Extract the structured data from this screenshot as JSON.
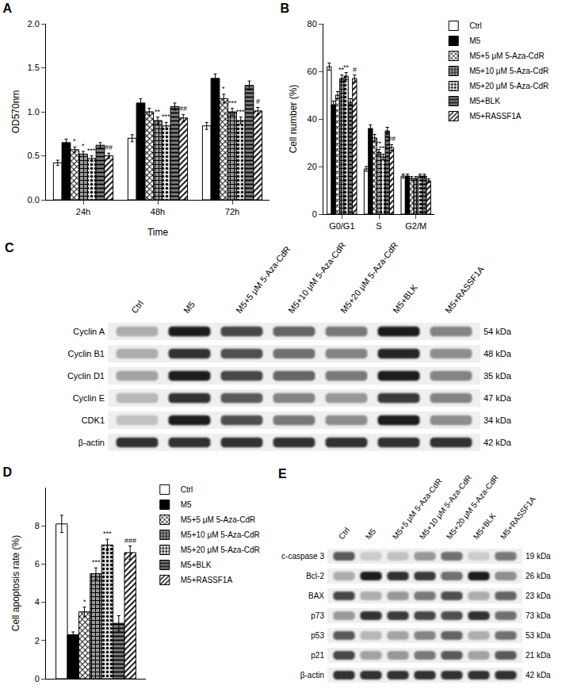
{
  "chart_data": [
    {
      "type": "bar",
      "title": "A",
      "x_label": "Time",
      "y_label": "OD570nm",
      "categories": [
        "24h",
        "48h",
        "72h"
      ],
      "ylim": [
        0,
        2
      ],
      "yticks": [
        {
          "value": 0,
          "label": "0.0"
        },
        0.5,
        {
          "value": 1,
          "label": "1.0"
        },
        1.5,
        {
          "value": 2,
          "label": "2.0"
        }
      ],
      "grid": false,
      "series": [
        {
          "name": "Ctrl",
          "color": "#ffffff",
          "values": [
            0.42,
            0.7,
            0.84
          ],
          "errors": [
            0.03,
            0.04,
            0.04
          ],
          "annotations": [
            null,
            null,
            null
          ]
        },
        {
          "name": "M5",
          "color": "#000000",
          "values": [
            0.65,
            1.1,
            1.38
          ],
          "errors": [
            0.04,
            0.05,
            0.05
          ],
          "annotations": [
            null,
            null,
            null
          ]
        },
        {
          "name": "M5+5 μM 5-Aza-CdR",
          "color": "#ffffff",
          "values": [
            0.57,
            1.0,
            1.15
          ],
          "errors": [
            0.03,
            0.04,
            0.05
          ],
          "annotations": [
            "*",
            null,
            "*"
          ]
        },
        {
          "name": "M5+10 μM 5-Aza-CdR",
          "color": "#9a9a9a",
          "values": [
            0.52,
            0.9,
            1.0
          ],
          "errors": [
            0.03,
            0.04,
            0.04
          ],
          "annotations": [
            "*",
            "**",
            "***"
          ]
        },
        {
          "name": "M5+20 μM 5-Aza-CdR",
          "color": "#e0e0e0",
          "values": [
            0.47,
            0.84,
            0.9
          ],
          "errors": [
            0.03,
            0.04,
            0.04
          ],
          "annotations": [
            "***",
            "***",
            "***"
          ]
        },
        {
          "name": "M5+BLK",
          "color": "#7a7a7a",
          "values": [
            0.62,
            1.06,
            1.3
          ],
          "errors": [
            0.03,
            0.04,
            0.05
          ],
          "annotations": [
            null,
            null,
            null
          ]
        },
        {
          "name": "M5+RASSF1A",
          "color": "#ffffff",
          "values": [
            0.5,
            0.93,
            1.01
          ],
          "errors": [
            0.03,
            0.04,
            0.04
          ],
          "annotations": [
            "##",
            "##",
            "#"
          ]
        }
      ]
    },
    {
      "type": "bar",
      "title": "B",
      "y_label": "Cell number (%)",
      "categories": [
        "G0/G1",
        "S",
        "G2/M"
      ],
      "ylim": [
        0,
        80
      ],
      "yticks": [
        0,
        20,
        40,
        60,
        80
      ],
      "grid": false,
      "legend": "upper right",
      "series": [
        {
          "name": "Ctrl",
          "color": "#ffffff",
          "values": [
            62,
            19,
            16
          ],
          "errors": [
            1.5,
            1,
            0.8
          ],
          "annotations": [
            null,
            null,
            null
          ]
        },
        {
          "name": "M5",
          "color": "#000000",
          "values": [
            46,
            36,
            16
          ],
          "errors": [
            1.5,
            1.5,
            0.8
          ],
          "annotations": [
            null,
            null,
            null
          ]
        },
        {
          "name": "M5+5 μM 5-Aza-CdR",
          "color": "#ffffff",
          "values": [
            50,
            32,
            15
          ],
          "errors": [
            1.5,
            1.5,
            0.8
          ],
          "annotations": [
            null,
            null,
            null
          ]
        },
        {
          "name": "M5+10 μM 5-Aza-CdR",
          "color": "#9a9a9a",
          "values": [
            57,
            26,
            15
          ],
          "errors": [
            1.5,
            1.2,
            0.8
          ],
          "annotations": [
            "**",
            "**",
            null
          ]
        },
        {
          "name": "M5+20 μM 5-Aza-CdR",
          "color": "#e0e0e0",
          "values": [
            58,
            24,
            16
          ],
          "errors": [
            1.5,
            1.2,
            0.8
          ],
          "annotations": [
            "**",
            "***",
            null
          ]
        },
        {
          "name": "M5+BLK",
          "color": "#7a7a7a",
          "values": [
            47,
            35,
            16
          ],
          "errors": [
            1.5,
            1.5,
            0.8
          ],
          "annotations": [
            null,
            null,
            null
          ]
        },
        {
          "name": "M5+RASSF1A",
          "color": "#ffffff",
          "values": [
            57,
            28,
            14
          ],
          "errors": [
            1.5,
            1.2,
            0.8
          ],
          "annotations": [
            "#",
            "##",
            null
          ]
        }
      ]
    },
    {
      "type": "bar",
      "title": "D",
      "y_label": "Cell apoptosis rate (%)",
      "categories": [
        null
      ],
      "ylim": [
        0,
        10
      ],
      "yticks": [
        0,
        2,
        4,
        6,
        8
      ],
      "grid": false,
      "legend": "upper right",
      "tick_labels": "y",
      "series": [
        {
          "name": "Ctrl",
          "color": "#ffffff",
          "values": [
            8.1
          ],
          "errors": [
            0.45
          ],
          "annotations": [
            null
          ]
        },
        {
          "name": "M5",
          "color": "#000000",
          "values": [
            2.3
          ],
          "errors": [
            0.15
          ],
          "annotations": [
            null
          ]
        },
        {
          "name": "M5+5 μM 5-Aza-CdR",
          "color": "#ffffff",
          "values": [
            3.5
          ],
          "errors": [
            0.25
          ],
          "annotations": [
            "*"
          ]
        },
        {
          "name": "M5+10 μM 5-Aza-CdR",
          "color": "#9a9a9a",
          "values": [
            5.5
          ],
          "errors": [
            0.3
          ],
          "annotations": [
            "***"
          ]
        },
        {
          "name": "M5+20 μM 5-Aza-CdR",
          "color": "#e0e0e0",
          "values": [
            7.0
          ],
          "errors": [
            0.3
          ],
          "annotations": [
            "***"
          ]
        },
        {
          "name": "M5+BLK",
          "color": "#7a7a7a",
          "values": [
            2.9
          ],
          "errors": [
            0.4
          ],
          "annotations": [
            null
          ]
        },
        {
          "name": "M5+RASSF1A",
          "color": "#ffffff",
          "values": [
            6.6
          ],
          "errors": [
            0.35
          ],
          "annotations": [
            "###"
          ]
        }
      ]
    }
  ],
  "blots": [
    {
      "title": "C",
      "lanes": [
        "Ctrl",
        "M5",
        "M5+5 μM 5-Aza-CdR",
        "M5+10 μM 5-Aza-CdR",
        "M5+20 μM 5-Aza-CdR",
        "M5+BLK",
        "M5+RASSF1A"
      ],
      "rows": [
        {
          "label": "Cyclin A",
          "size": "54 kDa",
          "intensity": [
            0.3,
            1.0,
            0.8,
            0.65,
            0.55,
            1.0,
            0.5
          ]
        },
        {
          "label": "Cyclin B1",
          "size": "48 kDa",
          "intensity": [
            0.3,
            0.9,
            0.75,
            0.6,
            0.5,
            0.95,
            0.45
          ]
        },
        {
          "label": "Cyclin D1",
          "size": "35 kDa",
          "intensity": [
            0.35,
            1.0,
            0.8,
            0.65,
            0.55,
            1.0,
            0.5
          ]
        },
        {
          "label": "Cyclin E",
          "size": "47 kDa",
          "intensity": [
            0.25,
            0.9,
            0.7,
            0.5,
            0.4,
            0.85,
            0.5
          ]
        },
        {
          "label": "CDK1",
          "size": "34 kDa",
          "intensity": [
            0.2,
            1.0,
            0.75,
            0.55,
            0.45,
            1.0,
            0.45
          ]
        },
        {
          "label": "β-actin",
          "size": "42 kDa",
          "intensity": [
            0.9,
            0.9,
            0.9,
            0.9,
            0.9,
            0.9,
            0.9
          ]
        }
      ]
    },
    {
      "title": "E",
      "lanes": [
        "Ctrl",
        "M5",
        "M5+5 μM 5-Aza-CdR",
        "M5+10 μM 5-Aza-CdR",
        "M5+20 μM 5-Aza-CdR",
        "M5+BLK",
        "M5+RASSF1A"
      ],
      "rows": [
        {
          "label": "c-caspase 3",
          "size": "19 kDa",
          "intensity": [
            0.7,
            0.15,
            0.2,
            0.4,
            0.6,
            0.15,
            0.55
          ]
        },
        {
          "label": "Bcl-2",
          "size": "26 kDa",
          "intensity": [
            0.3,
            1.0,
            0.9,
            0.85,
            0.6,
            1.0,
            0.45
          ]
        },
        {
          "label": "BAX",
          "size": "23 kDa",
          "intensity": [
            0.8,
            0.3,
            0.4,
            0.55,
            0.75,
            0.3,
            0.65
          ]
        },
        {
          "label": "p73",
          "size": "73 kDa",
          "intensity": [
            0.4,
            0.9,
            0.85,
            0.8,
            0.75,
            0.9,
            0.6
          ]
        },
        {
          "label": "p53",
          "size": "53 kDa",
          "intensity": [
            0.7,
            0.25,
            0.35,
            0.5,
            0.65,
            0.3,
            0.6
          ]
        },
        {
          "label": "p21",
          "size": "21 kDa",
          "intensity": [
            0.8,
            0.35,
            0.4,
            0.55,
            0.7,
            0.35,
            0.7
          ]
        },
        {
          "label": "β-actin",
          "size": "42 kDa",
          "intensity": [
            0.9,
            0.9,
            0.9,
            0.9,
            0.9,
            0.9,
            0.9
          ]
        }
      ]
    }
  ]
}
